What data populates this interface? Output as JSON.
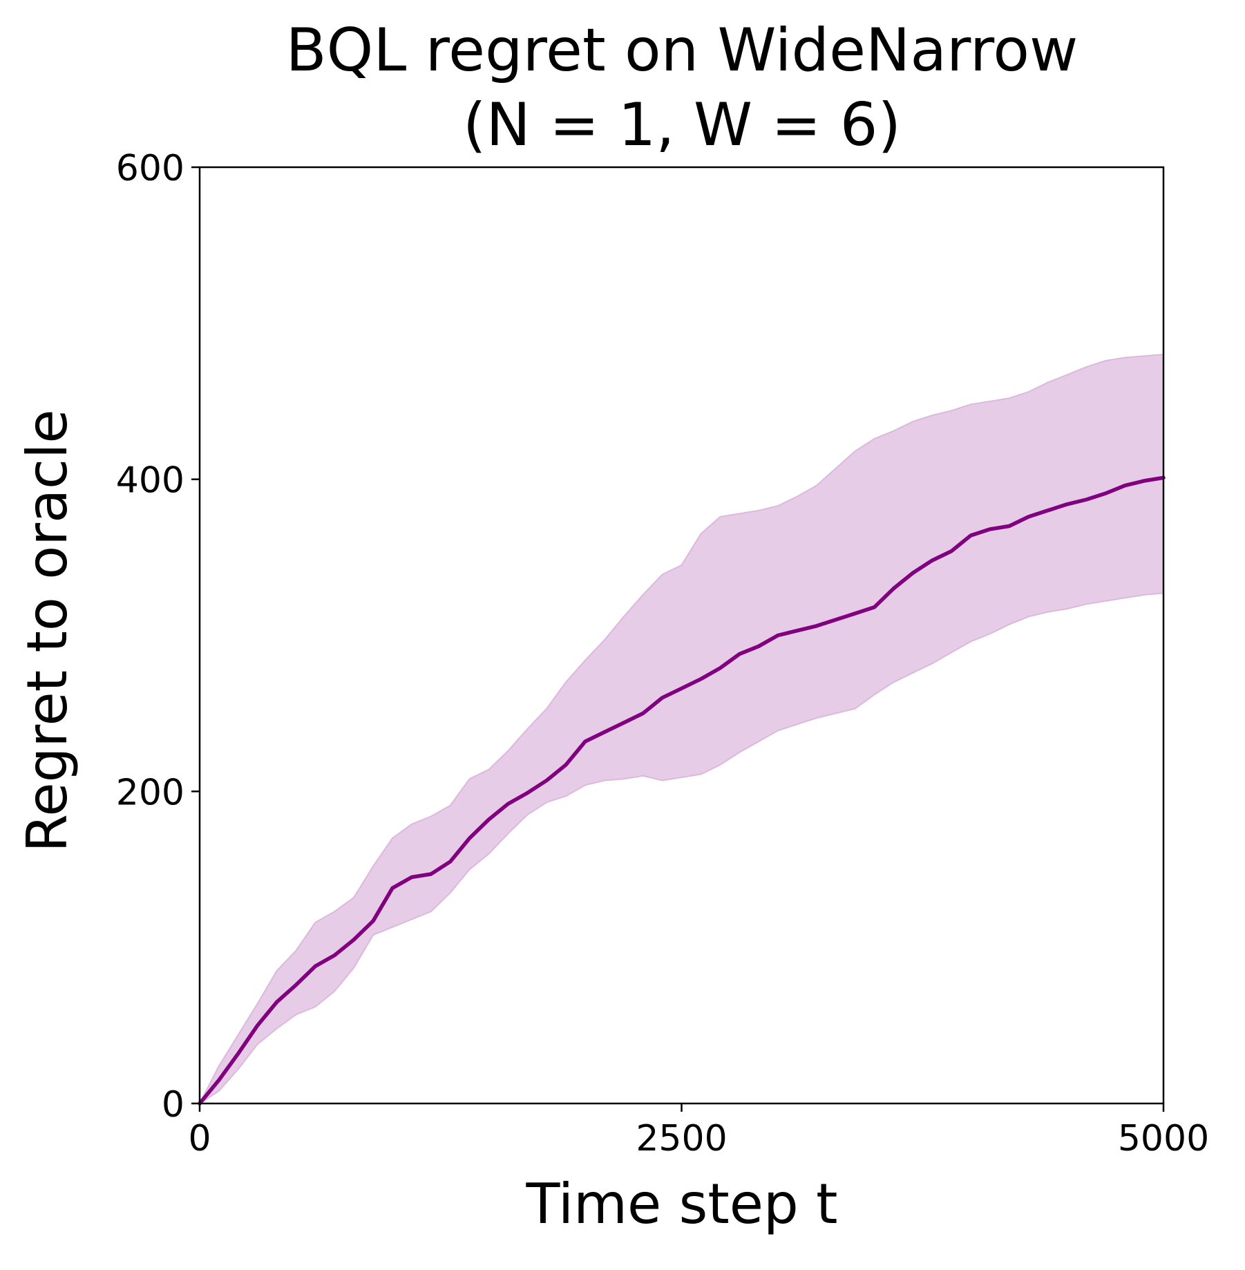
{
  "chart_data": {
    "type": "line",
    "title_line1": "BQL regret on WideNarrow",
    "title_line2": "(N = 1, W = 6)",
    "xlabel": "Time step t",
    "ylabel": "Regret to oracle",
    "xlim": [
      0,
      5000
    ],
    "ylim": [
      0,
      600
    ],
    "xticks": [
      0,
      2500,
      5000
    ],
    "xtick_labels": [
      "0",
      "2500",
      "5000"
    ],
    "yticks": [
      0,
      200,
      400,
      600
    ],
    "ytick_labels": [
      "0",
      "200",
      "400",
      "600"
    ],
    "grid": false,
    "line_color": "#800080",
    "band_color": "#e6cce6",
    "series": [
      {
        "x": [
          0,
          100,
          200,
          300,
          400,
          500,
          600,
          700,
          800,
          900,
          1000,
          1100,
          1200,
          1300,
          1400,
          1500,
          1600,
          1700,
          1800,
          1900,
          2000,
          2100,
          2200,
          2300,
          2400,
          2500,
          2600,
          2700,
          2800,
          2900,
          3000,
          3100,
          3200,
          3300,
          3400,
          3500,
          3600,
          3700,
          3800,
          3900,
          4000,
          4100,
          4200,
          4300,
          4400,
          4500,
          4600,
          4700,
          4800,
          4900,
          5000
        ],
        "values": [
          0,
          15,
          32,
          50,
          65,
          76,
          88,
          95,
          105,
          117,
          138,
          145,
          147,
          155,
          170,
          182,
          192,
          199,
          207,
          217,
          232,
          238,
          244,
          250,
          260,
          266,
          272,
          279,
          288,
          293,
          300,
          303,
          306,
          310,
          314,
          318,
          330,
          340,
          348,
          354,
          364,
          368,
          370,
          376,
          380,
          384,
          387,
          391,
          396,
          399,
          401
        ],
        "lower": [
          0,
          8,
          22,
          38,
          48,
          57,
          62,
          72,
          87,
          108,
          113,
          118,
          123,
          135,
          150,
          160,
          173,
          185,
          193,
          197,
          204,
          207,
          208,
          210,
          207,
          209,
          211,
          217,
          225,
          232,
          239,
          243,
          247,
          250,
          253,
          262,
          270,
          276,
          282,
          289,
          296,
          301,
          307,
          312,
          315,
          317,
          320,
          322,
          324,
          326,
          327
        ],
        "upper": [
          0,
          24,
          44,
          64,
          85,
          98,
          116,
          123,
          132,
          152,
          170,
          179,
          184,
          191,
          208,
          214,
          226,
          240,
          253,
          270,
          284,
          297,
          312,
          326,
          339,
          345,
          365,
          376,
          378,
          380,
          383,
          389,
          396,
          407,
          418,
          426,
          431,
          437,
          441,
          444,
          448,
          450,
          452,
          456,
          462,
          467,
          472,
          476,
          478,
          479,
          480
        ]
      }
    ]
  }
}
